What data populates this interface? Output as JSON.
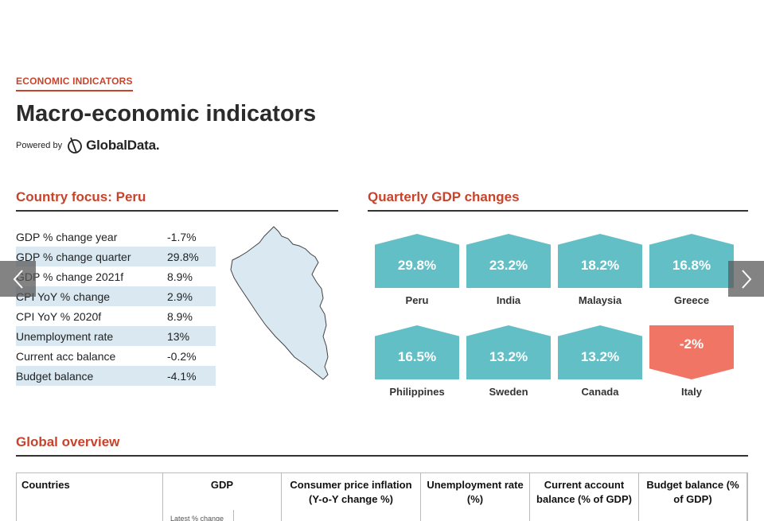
{
  "header": {
    "section_tag": "ECONOMIC INDICATORS",
    "title": "Macro-economic indicators",
    "powered_by": "Powered by",
    "brand": "GlobalData."
  },
  "country_focus": {
    "title": "Country focus: Peru",
    "rows": [
      {
        "label": "GDP % change year",
        "value": "-1.7%"
      },
      {
        "label": "GDP % change quarter",
        "value": "29.8%"
      },
      {
        "label": "GDP % change 2021f",
        "value": "8.9%"
      },
      {
        "label": "CPI YoY % change",
        "value": "2.9%"
      },
      {
        "label": "CPI YoY % 2020f",
        "value": "8.9%"
      },
      {
        "label": "Unemployment rate",
        "value": "13%"
      },
      {
        "label": "Current acc balance",
        "value": "-0.2%"
      },
      {
        "label": "Budget balance",
        "value": "-4.1%"
      }
    ],
    "map_color": "#d9e8f1"
  },
  "quarterly_gdp": {
    "title": "Quarterly GDP changes",
    "tiles": [
      {
        "country": "Peru",
        "value": "29.8%",
        "direction": "up"
      },
      {
        "country": "India",
        "value": "23.2%",
        "direction": "up"
      },
      {
        "country": "Malaysia",
        "value": "18.2%",
        "direction": "up"
      },
      {
        "country": "Greece",
        "value": "16.8%",
        "direction": "up"
      },
      {
        "country": "Philippines",
        "value": "16.5%",
        "direction": "up"
      },
      {
        "country": "Sweden",
        "value": "13.2%",
        "direction": "up"
      },
      {
        "country": "Canada",
        "value": "13.2%",
        "direction": "up"
      },
      {
        "country": "Italy",
        "value": "-2%",
        "direction": "down"
      }
    ],
    "colors": {
      "up": "#63bfc6",
      "down": "#f07565"
    }
  },
  "global_overview": {
    "title": "Global overview",
    "columns": [
      "Countries",
      "GDP",
      "Consumer price inflation (Y-o-Y change %)",
      "Unemployment rate (%)",
      "Current account balance (% of GDP)",
      "Budget balance (% of GDP)"
    ],
    "gdp_subheader": "Latest % change"
  },
  "navigation": {
    "prev": "previous-icon",
    "next": "next-icon"
  },
  "accent_color": "#c8432b"
}
